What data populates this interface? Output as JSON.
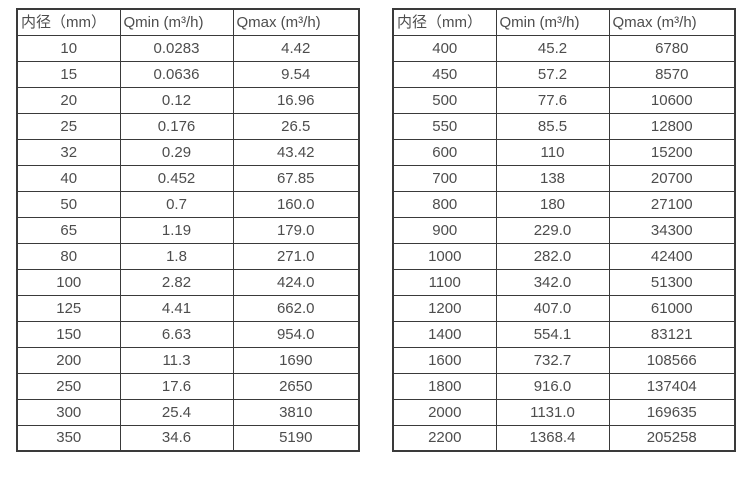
{
  "tables": [
    {
      "name": "flow-table-small-diameter",
      "headers": [
        "内径（mm）",
        "Qmin (m³/h)",
        "Qmax (m³/h)"
      ],
      "rows": [
        [
          "10",
          "0.0283",
          "4.42"
        ],
        [
          "15",
          "0.0636",
          "9.54"
        ],
        [
          "20",
          "0.12",
          "16.96"
        ],
        [
          "25",
          "0.176",
          "26.5"
        ],
        [
          "32",
          "0.29",
          "43.42"
        ],
        [
          "40",
          "0.452",
          "67.85"
        ],
        [
          "50",
          "0.7",
          "160.0"
        ],
        [
          "65",
          "1.19",
          "179.0"
        ],
        [
          "80",
          "1.8",
          "271.0"
        ],
        [
          "100",
          "2.82",
          "424.0"
        ],
        [
          "125",
          "4.41",
          "662.0"
        ],
        [
          "150",
          "6.63",
          "954.0"
        ],
        [
          "200",
          "11.3",
          "1690"
        ],
        [
          "250",
          "17.6",
          "2650"
        ],
        [
          "300",
          "25.4",
          "3810"
        ],
        [
          "350",
          "34.6",
          "5190"
        ]
      ]
    },
    {
      "name": "flow-table-large-diameter",
      "headers": [
        "内径（mm）",
        "Qmin (m³/h)",
        "Qmax (m³/h)"
      ],
      "rows": [
        [
          "400",
          "45.2",
          "6780"
        ],
        [
          "450",
          "57.2",
          "8570"
        ],
        [
          "500",
          "77.6",
          "10600"
        ],
        [
          "550",
          "85.5",
          "12800"
        ],
        [
          "600",
          "110",
          "15200"
        ],
        [
          "700",
          "138",
          "20700"
        ],
        [
          "800",
          "180",
          "27100"
        ],
        [
          "900",
          "229.0",
          "34300"
        ],
        [
          "1000",
          "282.0",
          "42400"
        ],
        [
          "1100",
          "342.0",
          "51300"
        ],
        [
          "1200",
          "407.0",
          "61000"
        ],
        [
          "1400",
          "554.1",
          "83121"
        ],
        [
          "1600",
          "732.7",
          "108566"
        ],
        [
          "1800",
          "916.0",
          "137404"
        ],
        [
          "2000",
          "1131.0",
          "169635"
        ],
        [
          "2200",
          "1368.4",
          "205258"
        ]
      ]
    }
  ],
  "colors": {
    "border": "#3a3a3a",
    "text": "#4d4d4d",
    "background": "#ffffff"
  }
}
